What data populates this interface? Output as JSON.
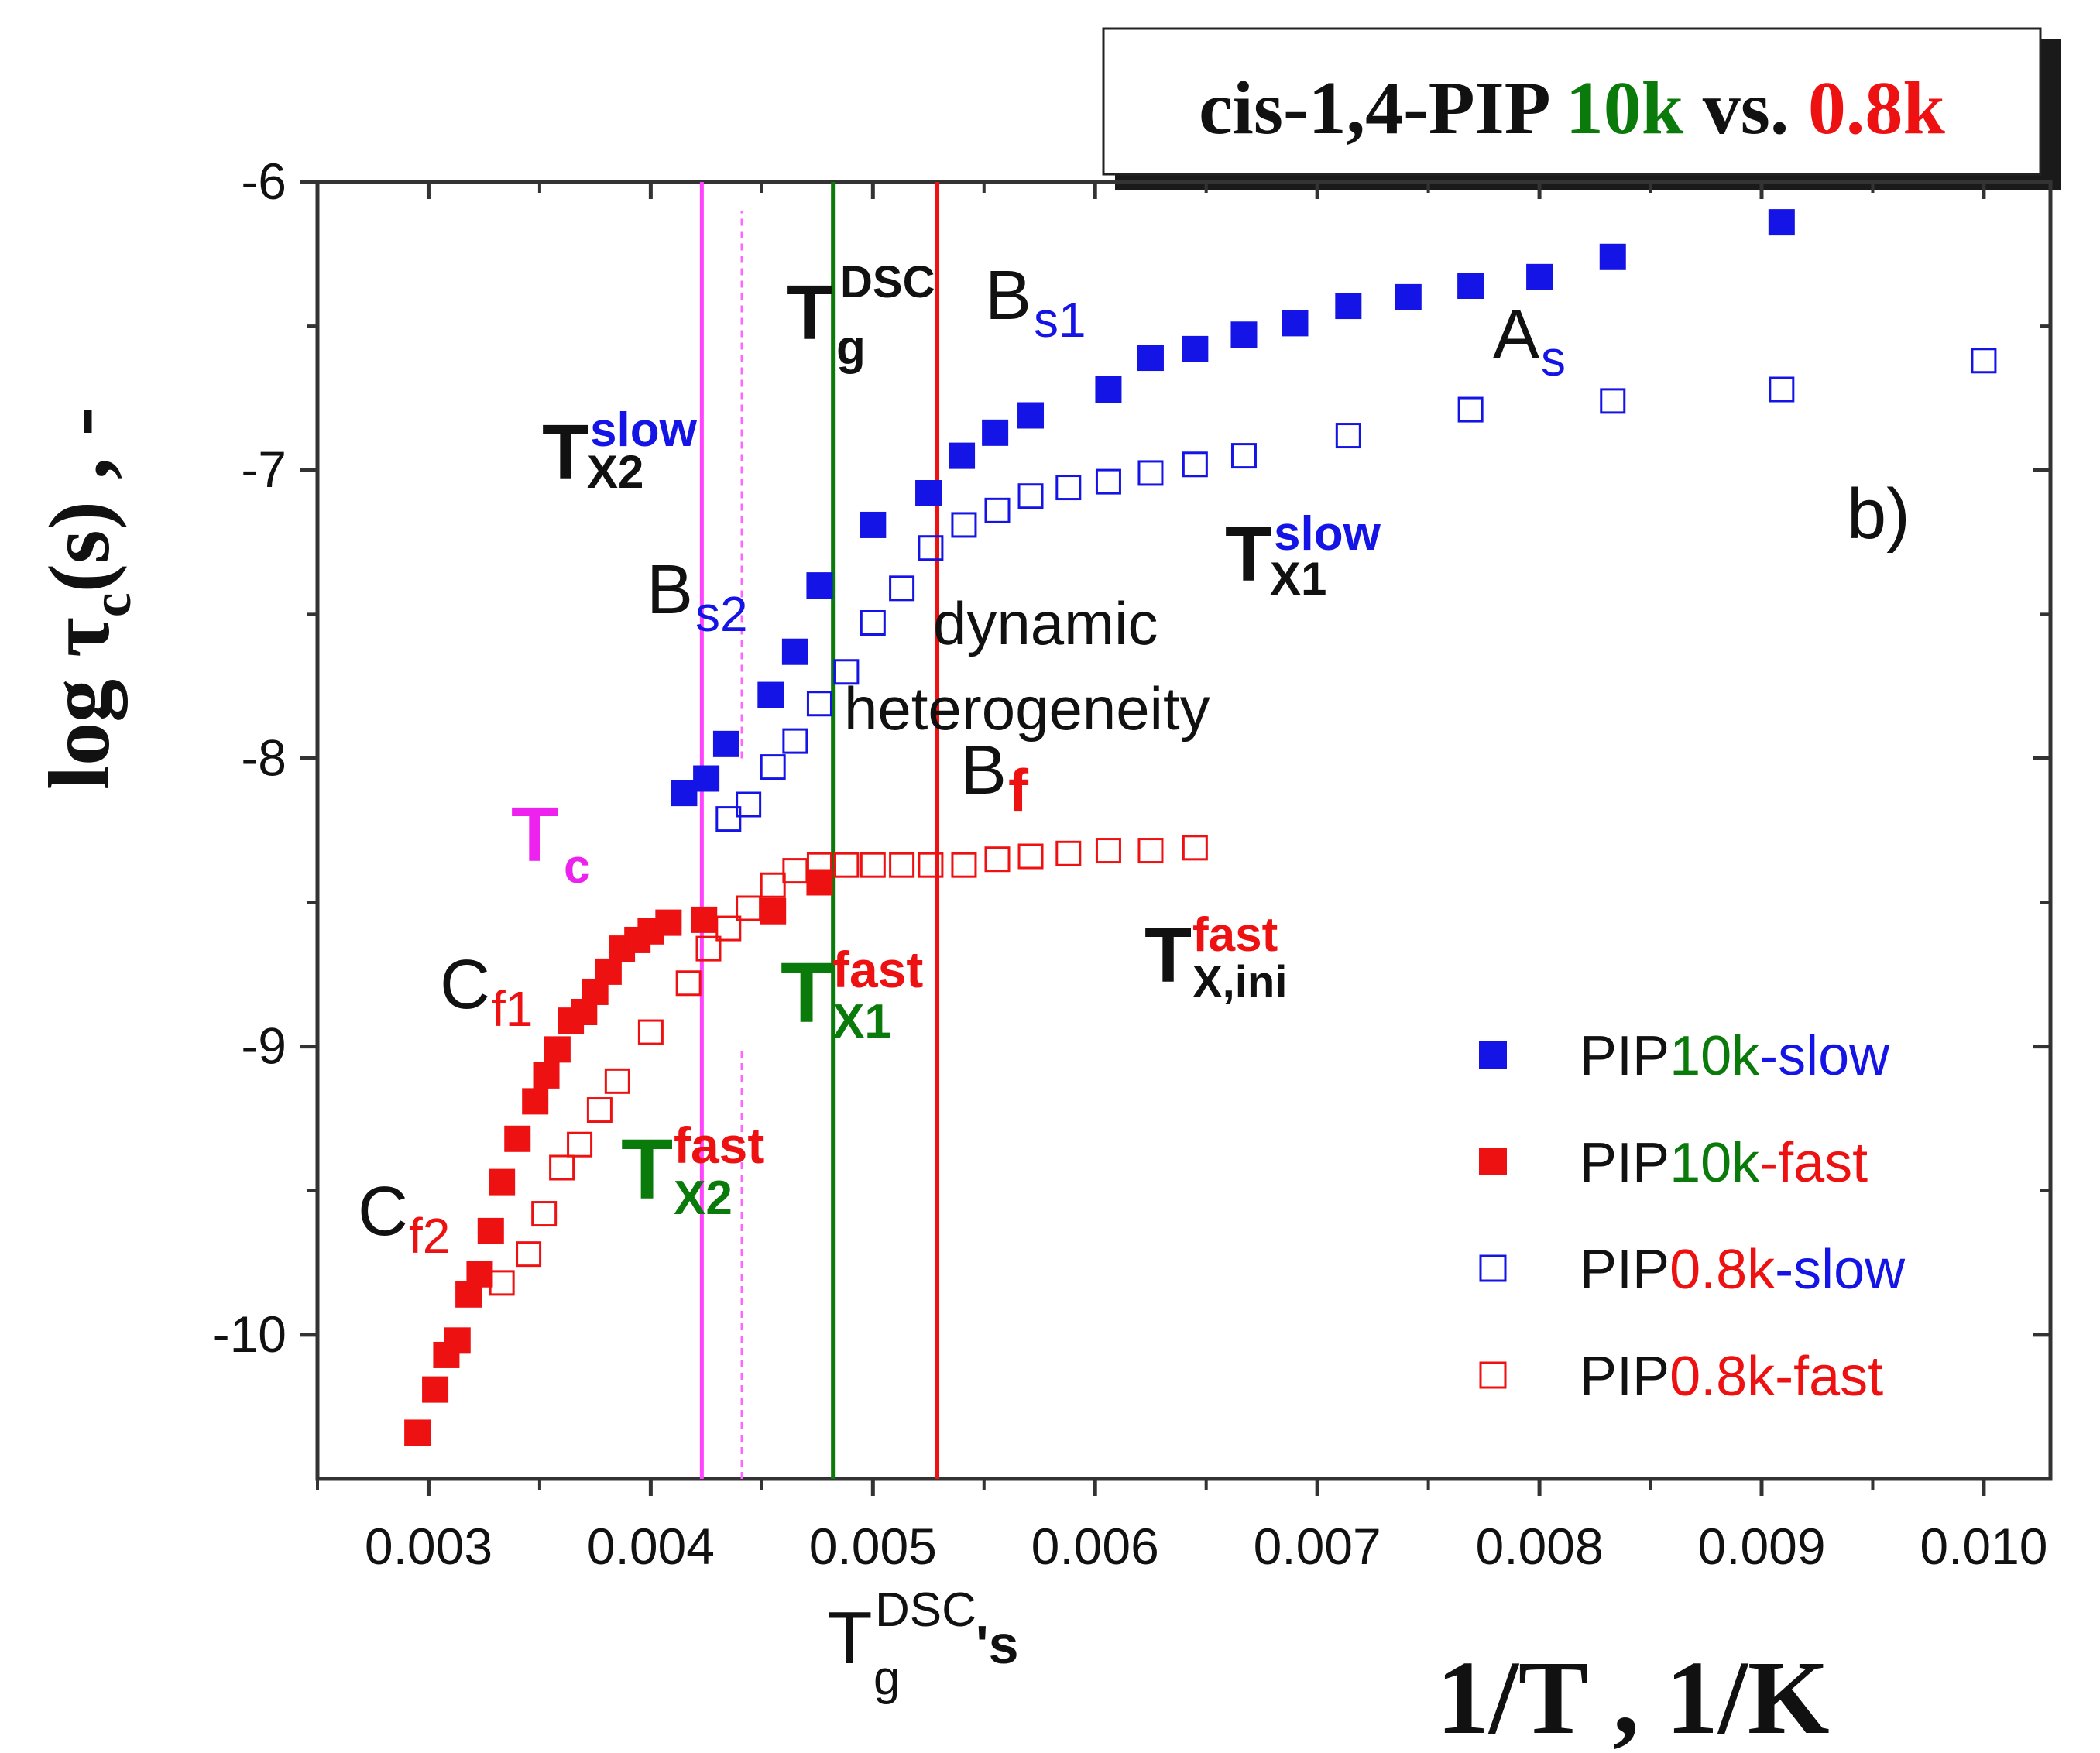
{
  "chart_data": {
    "type": "scatter",
    "panel_label": "b)",
    "title": {
      "prefix": "cis-1,4-PIP ",
      "hi": "10k",
      "mid": " vs. ",
      "lo": "0.8k"
    },
    "xlabel": "1/T , 1/K",
    "ylabel": {
      "main": "log τ",
      "sub": "c",
      "rest": "(s) , -"
    },
    "xlim": [
      0.0025,
      0.0103
    ],
    "ylim": [
      -10.5,
      -6.0
    ],
    "x_ticks": [
      0.003,
      0.004,
      0.005,
      0.006,
      0.007,
      0.008,
      0.009,
      0.01
    ],
    "x_tick_labels": [
      "0.003",
      "0.004",
      "0.005",
      "0.006",
      "0.007",
      "0.008",
      "0.009",
      "0.010"
    ],
    "y_ticks": [
      -6,
      -7,
      -8,
      -9,
      -10
    ],
    "y_tick_labels": [
      "-6",
      "-7",
      "-8",
      "-9",
      "-10"
    ],
    "vertical_lines": [
      {
        "name": "tc-line-solid",
        "x": 0.00423,
        "y_from": -10.5,
        "y_to": -6.0,
        "color": "#ff44ff",
        "style": "solid"
      },
      {
        "name": "tc-line-dashed-upper",
        "x": 0.00441,
        "y_from": -8.0,
        "y_to": -6.1,
        "color": "#ff66ff",
        "style": "dashed"
      },
      {
        "name": "tc-line-dashed-lower",
        "x": 0.00441,
        "y_from": -10.5,
        "y_to": -9.0,
        "color": "#ff66ff",
        "style": "dashed"
      },
      {
        "name": "tg-10k-line",
        "x": 0.00482,
        "y_from": -10.5,
        "y_to": -6.0,
        "color": "#0a7a0a",
        "style": "solid"
      },
      {
        "name": "tg-08k-line",
        "x": 0.00529,
        "y_from": -10.5,
        "y_to": -6.0,
        "color": "#ee1111",
        "style": "solid"
      }
    ],
    "series": [
      {
        "name": "PIP10k-slow",
        "legend": {
          "a": "PIP",
          "b": "10k",
          "c": "-slow"
        },
        "marker": "filled",
        "color": "#1414e6",
        "x": [
          0.00415,
          0.00425,
          0.00434,
          0.00454,
          0.00465,
          0.00476,
          0.005,
          0.00525,
          0.0054,
          0.00555,
          0.00571,
          0.00606,
          0.00625,
          0.00645,
          0.00667,
          0.0069,
          0.00714,
          0.00741,
          0.00769,
          0.008,
          0.00833,
          0.00909
        ],
        "y": [
          -8.12,
          -8.07,
          -7.95,
          -7.78,
          -7.63,
          -7.4,
          -7.19,
          -7.08,
          -6.95,
          -6.87,
          -6.81,
          -6.72,
          -6.61,
          -6.58,
          -6.53,
          -6.49,
          -6.43,
          -6.4,
          -6.36,
          -6.33,
          -6.26,
          -6.14
        ]
      },
      {
        "name": "PIP10k-fast",
        "legend": {
          "a": "PIP",
          "b": "10k",
          "c": "-fast"
        },
        "marker": "filled",
        "color": "#ee1111",
        "x": [
          0.00295,
          0.00303,
          0.00308,
          0.00313,
          0.00318,
          0.00323,
          0.00328,
          0.00333,
          0.0034,
          0.00348,
          0.00353,
          0.00358,
          0.00364,
          0.0037,
          0.00375,
          0.00381,
          0.00387,
          0.00394,
          0.004,
          0.00408,
          0.00424,
          0.00455,
          0.00476
        ],
        "y": [
          -10.34,
          -10.19,
          -10.07,
          -10.02,
          -9.86,
          -9.79,
          -9.64,
          -9.47,
          -9.32,
          -9.19,
          -9.1,
          -9.01,
          -8.91,
          -8.88,
          -8.81,
          -8.74,
          -8.66,
          -8.63,
          -8.6,
          -8.57,
          -8.56,
          -8.53,
          -8.43
        ]
      },
      {
        "name": "PIP0.8k-slow",
        "legend": {
          "a": "PIP",
          "b": "0.8k",
          "c": "-slow"
        },
        "marker": "open",
        "color": "#1414e6",
        "x": [
          0.00435,
          0.00444,
          0.00455,
          0.00465,
          0.00476,
          0.00488,
          0.005,
          0.00513,
          0.00526,
          0.00541,
          0.00556,
          0.00571,
          0.00588,
          0.00606,
          0.00625,
          0.00645,
          0.00667,
          0.00714,
          0.00769,
          0.00833,
          0.00909,
          0.01
        ],
        "y": [
          -8.21,
          -8.16,
          -8.03,
          -7.94,
          -7.81,
          -7.7,
          -7.53,
          -7.41,
          -7.27,
          -7.19,
          -7.14,
          -7.09,
          -7.06,
          -7.04,
          -7.01,
          -6.98,
          -6.95,
          -6.88,
          -6.79,
          -6.76,
          -6.72,
          -6.62
        ]
      },
      {
        "name": "PIP0.8k-fast",
        "legend": {
          "a": "PIP",
          "b": "0.8k",
          "c": "-fast"
        },
        "marker": "open",
        "color": "#ee1111",
        "x": [
          0.00333,
          0.00345,
          0.00352,
          0.0036,
          0.00368,
          0.00377,
          0.00385,
          0.004,
          0.00417,
          0.00426,
          0.00435,
          0.00444,
          0.00455,
          0.00465,
          0.00476,
          0.00488,
          0.005,
          0.00513,
          0.00526,
          0.00541,
          0.00556,
          0.00571,
          0.00588,
          0.00606,
          0.00625,
          0.00645
        ],
        "y": [
          -9.82,
          -9.72,
          -9.58,
          -9.42,
          -9.34,
          -9.22,
          -9.12,
          -8.95,
          -8.78,
          -8.66,
          -8.59,
          -8.52,
          -8.44,
          -8.39,
          -8.37,
          -8.37,
          -8.37,
          -8.37,
          -8.37,
          -8.37,
          -8.35,
          -8.34,
          -8.33,
          -8.32,
          -8.32,
          -8.31
        ]
      }
    ],
    "annotations": {
      "tg_dsc": {
        "main": "T",
        "sub": "g",
        "sup": "DSC"
      },
      "bs1": {
        "main": "B",
        "sub": "s1"
      },
      "as": {
        "main": "A",
        "sub": "s"
      },
      "tx2_slow": {
        "main": "T",
        "sub": "X2",
        "sup": "slow"
      },
      "tx1_slow": {
        "main": "T",
        "sub": "X1",
        "sup": "slow"
      },
      "bs2": {
        "main": "B",
        "sub": "s2"
      },
      "dynamic": "dynamic",
      "heterogeneity": "heterogeneity",
      "bf": {
        "main": "B",
        "sub": "f"
      },
      "tc": {
        "main": "T",
        "sub": "c"
      },
      "tx1_fast": {
        "main": "T",
        "sub": "X1",
        "sup": "fast"
      },
      "tx_ini_fast": {
        "main": "T",
        "sub": "X,ini",
        "sup": "fast"
      },
      "cf1": {
        "main": "C",
        "sub": "f1"
      },
      "cf2": {
        "main": "C",
        "sub": "f2"
      },
      "tx2_fast": {
        "main": "T",
        "sub": "X2",
        "sup": "fast"
      },
      "tg_dsc_s": {
        "main": "T",
        "sub": "g",
        "sup": "DSC",
        "tail": "'s"
      }
    }
  }
}
